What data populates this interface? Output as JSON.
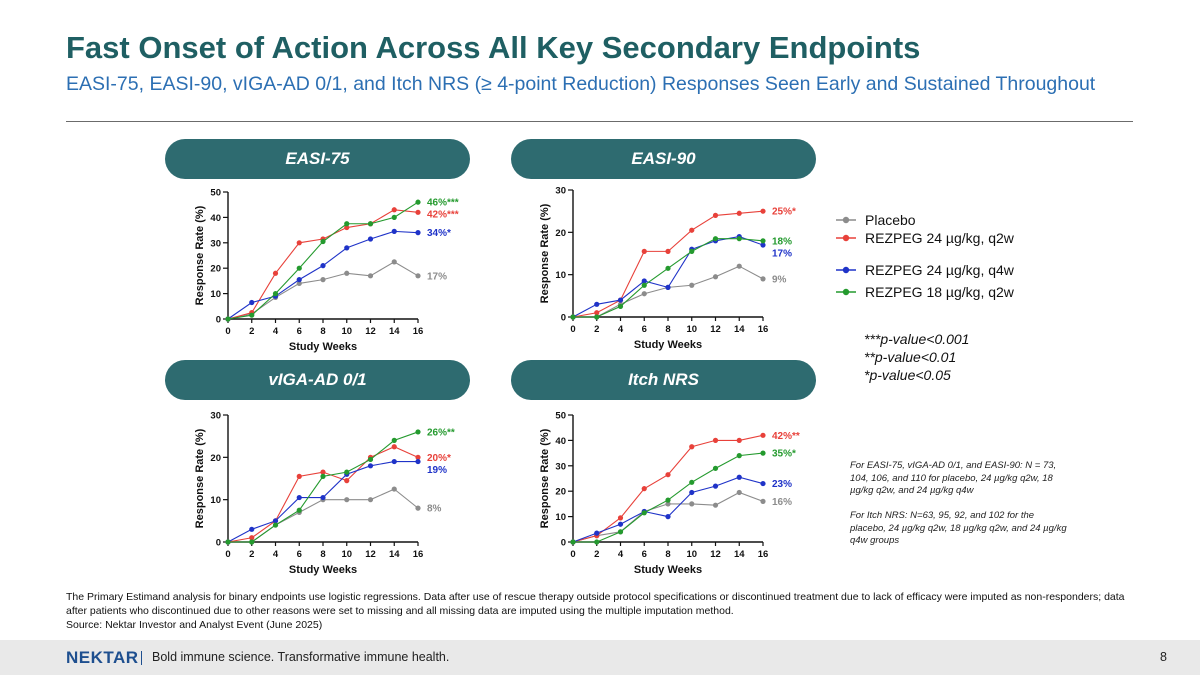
{
  "title": "Fast Onset of Action Across All Key Secondary Endpoints",
  "subtitle": "EASI-75, EASI-90, vIGA-AD 0/1, and Itch NRS (≥ 4-point Reduction) Responses Seen Early and Sustained Throughout",
  "colors": {
    "placebo": "#8c8c8c",
    "q2w24": "#e8413a",
    "q4w24": "#1f33c8",
    "q2w18": "#249a2e",
    "pill": "#2e6b70",
    "title": "#1f5f63",
    "subtitle": "#2c6fb3"
  },
  "legend": [
    {
      "key": "placebo",
      "label": "Placebo"
    },
    {
      "key": "q2w24",
      "label": "REZPEG 24 µg/kg, q2w"
    },
    {
      "key": "q4w24",
      "label": "REZPEG 24 µg/kg, q4w"
    },
    {
      "key": "q2w18",
      "label": "REZPEG 18 µg/kg, q2w"
    }
  ],
  "pvalues": [
    "***p-value<0.001",
    "**p-value<0.01",
    "*p-value<0.05"
  ],
  "n_note_1": "For EASI-75, vIGA-AD 0/1, and EASI-90: N = 73, 104, 106, and 110 for placebo, 24 µg/kg q2w, 18 µg/kg q2w, and 24 µg/kg q4w",
  "n_note_2": "For Itch NRS: N=63, 95, 92, and 102 for the placebo, 24 µg/kg q2w, 18 µg/kg q2w, and 24 µg/kg q4w groups",
  "footnote": "The Primary Estimand analysis for binary endpoints use logistic regressions. Data after use of rescue therapy outside protocol specifications or discontinued treatment due to lack of  efficacy were imputed as non-responders; data after patients who discontinued due to other reasons were set to missing and all missing data are imputed using the multiple imputation method.",
  "source": "Source: Nektar Investor and Analyst Event (June 2025)",
  "footer": {
    "logo": "NEKTAR",
    "tagline": "Bold immune science. Transformative immune health.",
    "page": "8"
  },
  "chart_data": [
    {
      "type": "line",
      "title": "EASI-75",
      "xlabel": "Study Weeks",
      "ylabel": "Response Rate (%)",
      "x": [
        0,
        2,
        4,
        6,
        8,
        10,
        12,
        14,
        16
      ],
      "ylim": [
        0,
        50
      ],
      "yticks": [
        0,
        10,
        20,
        30,
        40,
        50
      ],
      "series": [
        {
          "key": "placebo",
          "name": "Placebo",
          "values": [
            0,
            2,
            8.5,
            14,
            15.5,
            18,
            17,
            22.5,
            17
          ],
          "end_label": "17%"
        },
        {
          "key": "q2w24",
          "name": "REZPEG 24 µg/kg, q2w",
          "values": [
            0,
            2.5,
            18,
            30,
            31.5,
            36,
            37.5,
            43,
            42
          ],
          "end_label": "42%***"
        },
        {
          "key": "q4w24",
          "name": "REZPEG 24 µg/kg, q4w",
          "values": [
            0,
            6.5,
            9,
            15.5,
            21,
            28,
            31.5,
            34.5,
            34
          ],
          "end_label": "34%*"
        },
        {
          "key": "q2w18",
          "name": "REZPEG 18 µg/kg, q2w",
          "values": [
            0,
            1.5,
            10,
            20,
            30.5,
            37.5,
            37.5,
            40,
            46
          ],
          "end_label": "46%***"
        }
      ]
    },
    {
      "type": "line",
      "title": "EASI-90",
      "xlabel": "Study Weeks",
      "ylabel": "Response Rate (%)",
      "x": [
        0,
        2,
        4,
        6,
        8,
        10,
        12,
        14,
        16
      ],
      "ylim": [
        0,
        30
      ],
      "yticks": [
        0,
        10,
        20,
        30
      ],
      "series": [
        {
          "key": "placebo",
          "name": "Placebo",
          "values": [
            0,
            0,
            3,
            5.5,
            7,
            7.5,
            9.5,
            12,
            9
          ],
          "end_label": "9%"
        },
        {
          "key": "q2w24",
          "name": "REZPEG 24 µg/kg, q2w",
          "values": [
            0,
            1,
            4,
            15.5,
            15.5,
            20.5,
            24,
            24.5,
            25
          ],
          "end_label": "25%*"
        },
        {
          "key": "q4w24",
          "name": "REZPEG 24 µg/kg, q4w",
          "values": [
            0,
            3,
            4,
            8.5,
            7,
            16,
            18,
            19,
            17
          ],
          "end_label": "17%"
        },
        {
          "key": "q2w18",
          "name": "REZPEG 18 µg/kg, q2w",
          "values": [
            0,
            0,
            2.5,
            7.5,
            11.5,
            15.5,
            18.5,
            18.5,
            18
          ],
          "end_label": "18%"
        }
      ]
    },
    {
      "type": "line",
      "title": "vIGA-AD 0/1",
      "xlabel": "Study Weeks",
      "ylabel": "Response Rate (%)",
      "x": [
        0,
        2,
        4,
        6,
        8,
        10,
        12,
        14,
        16
      ],
      "ylim": [
        0,
        30
      ],
      "yticks": [
        0,
        10,
        20,
        30
      ],
      "series": [
        {
          "key": "placebo",
          "name": "Placebo",
          "values": [
            0,
            0,
            4,
            7,
            10,
            10,
            10,
            12.5,
            8
          ],
          "end_label": "8%"
        },
        {
          "key": "q2w24",
          "name": "REZPEG 24 µg/kg, q2w",
          "values": [
            0,
            1,
            5,
            15.5,
            16.5,
            14.5,
            20,
            22.5,
            20
          ],
          "end_label": "20%*"
        },
        {
          "key": "q4w24",
          "name": "REZPEG 24 µg/kg, q4w",
          "values": [
            0,
            3,
            5,
            10.5,
            10.5,
            16,
            18,
            19,
            19
          ],
          "end_label": "19%"
        },
        {
          "key": "q2w18",
          "name": "REZPEG 18 µg/kg, q2w",
          "values": [
            0,
            0,
            4,
            7.5,
            15.5,
            16.5,
            19.5,
            24,
            26
          ],
          "end_label": "26%**"
        }
      ]
    },
    {
      "type": "line",
      "title": "Itch NRS",
      "xlabel": "Study Weeks",
      "ylabel": "Response Rate (%)",
      "x": [
        0,
        2,
        4,
        6,
        8,
        10,
        12,
        14,
        16
      ],
      "ylim": [
        0,
        50
      ],
      "yticks": [
        0,
        10,
        20,
        30,
        40,
        50
      ],
      "series": [
        {
          "key": "placebo",
          "name": "Placebo",
          "values": [
            0,
            2.5,
            4,
            12,
            15,
            15,
            14.5,
            19.5,
            16
          ],
          "end_label": "16%"
        },
        {
          "key": "q2w24",
          "name": "REZPEG 24 µg/kg, q2w",
          "values": [
            0,
            2.5,
            9.5,
            21,
            26.5,
            37.5,
            40,
            40,
            42
          ],
          "end_label": "42%**"
        },
        {
          "key": "q4w24",
          "name": "REZPEG 24 µg/kg, q4w",
          "values": [
            0,
            3.5,
            7,
            12,
            10,
            19.5,
            22,
            25.5,
            23
          ],
          "end_label": "23%"
        },
        {
          "key": "q2w18",
          "name": "REZPEG 18 µg/kg, q2w",
          "values": [
            0,
            0,
            4,
            11.5,
            16.5,
            23.5,
            29,
            34,
            35
          ],
          "end_label": "35%*"
        }
      ]
    }
  ]
}
